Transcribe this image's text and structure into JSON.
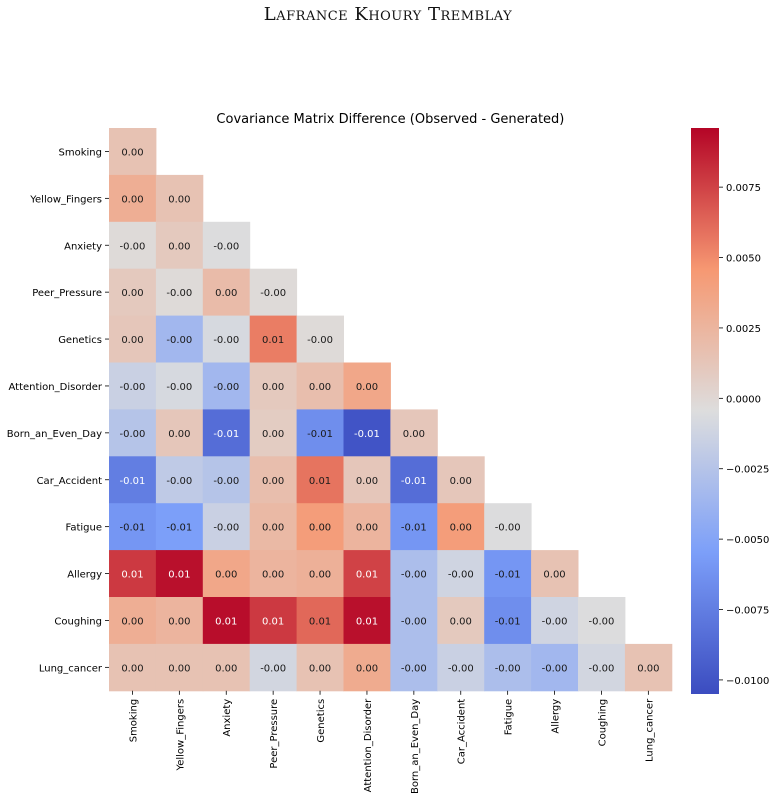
{
  "header": {
    "text": "Lafrance Khoury Tremblay"
  },
  "chart_data": {
    "type": "heatmap",
    "title": "Covariance Matrix Difference (Observed - Generated)",
    "variables": [
      "Smoking",
      "Yellow_Fingers",
      "Anxiety",
      "Peer_Pressure",
      "Genetics",
      "Attention_Disorder",
      "Born_an_Even_Day",
      "Car_Accident",
      "Fatigue",
      "Allergy",
      "Coughing",
      "Lung_cancer"
    ],
    "colormap": "coolwarm",
    "vmin": -0.0105,
    "vmax": 0.0096,
    "colorbar_ticks": [
      -0.01,
      -0.0075,
      -0.005,
      -0.0025,
      0.0,
      0.0025,
      0.005,
      0.0075
    ],
    "colorbar_tick_labels": [
      "−0.0100",
      "−0.0075",
      "−0.0050",
      "−0.0025",
      "0.0000",
      "0.0025",
      "0.0050",
      "0.0075"
    ],
    "values": [
      [
        0.0015
      ],
      [
        0.003,
        0.0015
      ],
      [
        -0.0002,
        0.001,
        -0.0005
      ],
      [
        0.001,
        -0.0002,
        0.002,
        -0.0002
      ],
      [
        0.0012,
        -0.0035,
        -0.0008,
        0.0055,
        -0.0002
      ],
      [
        -0.0015,
        -0.0008,
        -0.0035,
        0.001,
        0.0018,
        0.0035
      ],
      [
        -0.0025,
        0.0012,
        -0.0085,
        0.0008,
        -0.0065,
        -0.01,
        0.0012
      ],
      [
        -0.0075,
        -0.002,
        -0.0025,
        0.0018,
        0.0058,
        0.0012,
        -0.0085,
        0.0012
      ],
      [
        -0.006,
        -0.0055,
        -0.0015,
        0.0022,
        0.0042,
        0.0025,
        -0.006,
        0.0042,
        -0.0005
      ],
      [
        0.0078,
        0.0092,
        0.0035,
        0.0025,
        0.0028,
        0.0075,
        -0.003,
        -0.0012,
        -0.006,
        0.0015
      ],
      [
        0.003,
        0.0025,
        0.0093,
        0.0078,
        0.0062,
        0.0092,
        -0.003,
        0.001,
        -0.0065,
        -0.0012,
        -0.0005
      ],
      [
        0.0015,
        0.0015,
        0.0015,
        -0.001,
        0.0015,
        0.0032,
        -0.003,
        -0.0015,
        -0.003,
        -0.0035,
        -0.001,
        0.0015
      ]
    ],
    "labels": [
      [
        "0.00"
      ],
      [
        "0.00",
        "0.00"
      ],
      [
        "-0.00",
        "0.00",
        "-0.00"
      ],
      [
        "0.00",
        "-0.00",
        "0.00",
        "-0.00"
      ],
      [
        "0.00",
        "-0.00",
        "-0.00",
        "0.01",
        "-0.00"
      ],
      [
        "-0.00",
        "-0.00",
        "-0.00",
        "0.00",
        "0.00",
        "0.00"
      ],
      [
        "-0.00",
        "0.00",
        "-0.01",
        "0.00",
        "-0.01",
        "-0.01",
        "0.00"
      ],
      [
        "-0.01",
        "-0.00",
        "-0.00",
        "0.00",
        "0.01",
        "0.00",
        "-0.01",
        "0.00"
      ],
      [
        "-0.01",
        "-0.01",
        "-0.00",
        "0.00",
        "0.00",
        "0.00",
        "-0.01",
        "0.00",
        "-0.00"
      ],
      [
        "0.01",
        "0.01",
        "0.00",
        "0.00",
        "0.00",
        "0.01",
        "-0.00",
        "-0.00",
        "-0.01",
        "0.00"
      ],
      [
        "0.00",
        "0.00",
        "0.01",
        "0.01",
        "0.01",
        "0.01",
        "-0.00",
        "0.00",
        "-0.01",
        "-0.00",
        "-0.00"
      ],
      [
        "0.00",
        "0.00",
        "0.00",
        "-0.00",
        "0.00",
        "0.00",
        "-0.00",
        "-0.00",
        "-0.00",
        "-0.00",
        "-0.00",
        "0.00"
      ]
    ]
  }
}
